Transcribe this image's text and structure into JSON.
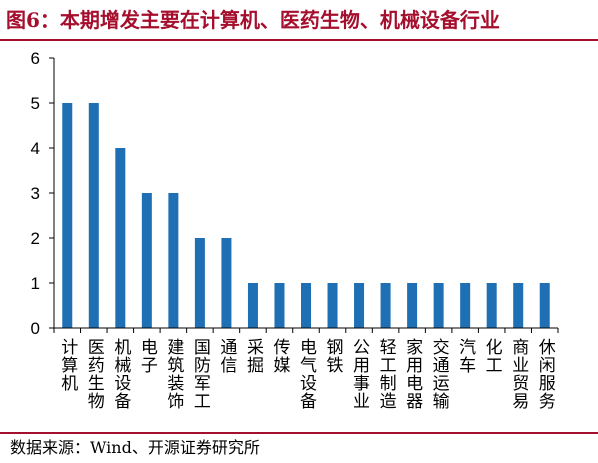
{
  "figure": {
    "title": "图6：本期增发主要在计算机、医药生物、机械设备行业",
    "source": "数据来源：Wind、开源证券研究所"
  },
  "chart_data": {
    "type": "bar",
    "title": "",
    "xlabel": "",
    "ylabel": "",
    "categories": [
      "计算机",
      "医药生物",
      "机械设备",
      "电子",
      "建筑装饰",
      "国防军工",
      "通信",
      "采掘",
      "传媒",
      "电气设备",
      "钢铁",
      "公用事业",
      "轻工制造",
      "家用电器",
      "交通运输",
      "汽车",
      "化工",
      "商业贸易",
      "休闲服务"
    ],
    "values": [
      5,
      5,
      4,
      3,
      3,
      2,
      2,
      1,
      1,
      1,
      1,
      1,
      1,
      1,
      1,
      1,
      1,
      1,
      1
    ],
    "ylim": [
      0,
      6
    ],
    "yticks": [
      0,
      1,
      2,
      3,
      4,
      5,
      6
    ],
    "grid": false,
    "legend": "none",
    "bar_color": "#1f6fb4",
    "title_color": "#a50f2d"
  }
}
